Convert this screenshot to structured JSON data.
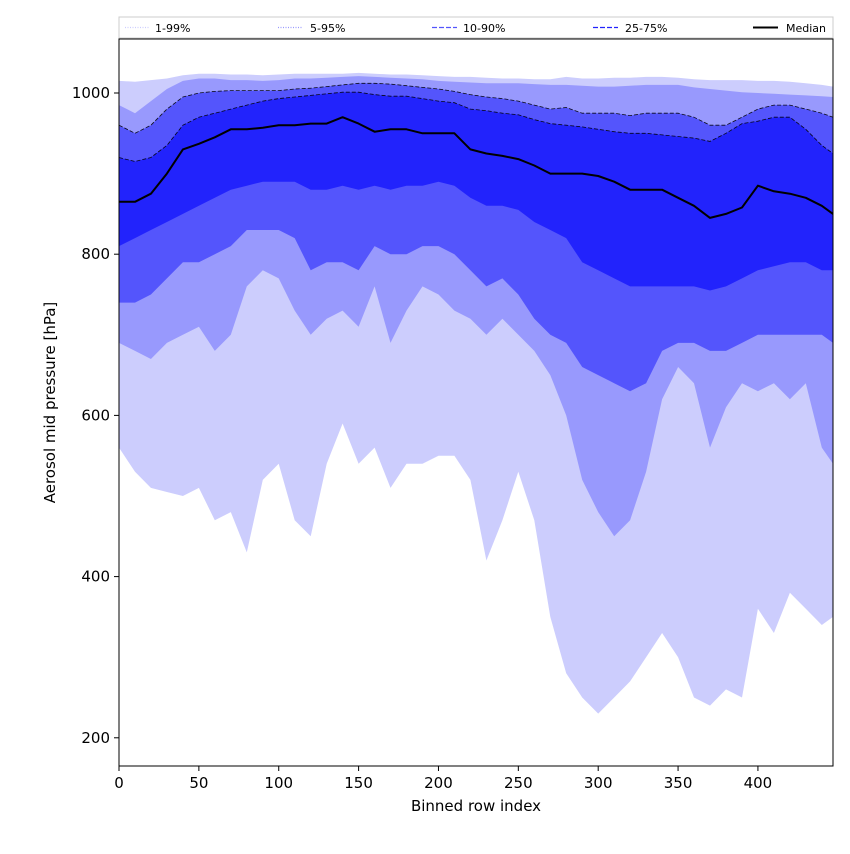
{
  "chart_data": {
    "type": "area",
    "title": "",
    "xlabel": "Binned row index",
    "ylabel": "Aerosol mid pressure [hPa]",
    "xlim": [
      0,
      447
    ],
    "ylim": [
      165,
      1067
    ],
    "xticks": [
      0,
      50,
      100,
      150,
      200,
      250,
      300,
      350,
      400
    ],
    "yticks": [
      200,
      400,
      600,
      800,
      1000
    ],
    "grid": false,
    "legend_position": "top",
    "legend": [
      {
        "label": "1-99%",
        "color": "#cccdfd",
        "style": "dotted"
      },
      {
        "label": "5-95%",
        "color": "#9899fd",
        "style": "dotted"
      },
      {
        "label": "10-90%",
        "color": "#5455fc",
        "style": "dashed"
      },
      {
        "label": "25-75%",
        "color": "#2223fc",
        "style": "dashed"
      },
      {
        "label": "Median",
        "color": "#000000",
        "style": "solid"
      }
    ],
    "x": [
      0,
      10,
      20,
      30,
      40,
      50,
      60,
      70,
      80,
      90,
      100,
      110,
      120,
      130,
      140,
      150,
      160,
      170,
      180,
      190,
      200,
      210,
      220,
      230,
      240,
      250,
      260,
      270,
      280,
      290,
      300,
      310,
      320,
      330,
      340,
      350,
      360,
      370,
      380,
      390,
      400,
      410,
      420,
      430,
      440,
      447
    ],
    "bands": [
      {
        "name": "1-99%",
        "color": "#cccdfd",
        "lower": [
          560,
          530,
          510,
          505,
          500,
          510,
          470,
          480,
          430,
          520,
          540,
          470,
          450,
          540,
          590,
          540,
          560,
          510,
          540,
          540,
          550,
          550,
          520,
          420,
          470,
          530,
          470,
          350,
          280,
          250,
          230,
          250,
          270,
          300,
          330,
          300,
          250,
          240,
          260,
          250,
          360,
          330,
          380,
          360,
          340,
          350
        ],
        "upper": [
          1015,
          1014,
          1016,
          1018,
          1022,
          1024,
          1024,
          1023,
          1023,
          1022,
          1023,
          1024,
          1024,
          1024,
          1024,
          1025,
          1024,
          1023,
          1023,
          1022,
          1021,
          1020,
          1020,
          1019,
          1018,
          1018,
          1017,
          1017,
          1020,
          1018,
          1018,
          1019,
          1019,
          1020,
          1020,
          1019,
          1017,
          1016,
          1016,
          1016,
          1015,
          1015,
          1014,
          1012,
          1010,
          1008
        ]
      },
      {
        "name": "5-95%",
        "color": "#9899fd",
        "lower": [
          690,
          680,
          670,
          690,
          700,
          710,
          680,
          700,
          760,
          780,
          770,
          730,
          700,
          720,
          730,
          710,
          760,
          690,
          730,
          760,
          750,
          730,
          720,
          700,
          720,
          700,
          680,
          650,
          600,
          520,
          480,
          450,
          470,
          530,
          620,
          660,
          640,
          560,
          610,
          640,
          630,
          640,
          620,
          640,
          560,
          540
        ],
        "upper": [
          985,
          975,
          990,
          1005,
          1015,
          1018,
          1018,
          1016,
          1016,
          1015,
          1016,
          1018,
          1018,
          1019,
          1020,
          1021,
          1020,
          1019,
          1018,
          1017,
          1015,
          1014,
          1013,
          1012,
          1012,
          1012,
          1011,
          1010,
          1010,
          1009,
          1008,
          1008,
          1009,
          1010,
          1010,
          1010,
          1007,
          1005,
          1003,
          1001,
          1000,
          999,
          998,
          997,
          996,
          995
        ]
      },
      {
        "name": "10-90%",
        "color": "#5455fc",
        "lower": [
          740,
          740,
          750,
          770,
          790,
          790,
          800,
          810,
          830,
          830,
          830,
          820,
          780,
          790,
          790,
          780,
          810,
          800,
          800,
          810,
          810,
          800,
          780,
          760,
          770,
          750,
          720,
          700,
          690,
          660,
          650,
          640,
          630,
          640,
          680,
          690,
          690,
          680,
          680,
          690,
          700,
          700,
          700,
          700,
          700,
          690
        ],
        "upper": [
          960,
          950,
          960,
          980,
          995,
          1000,
          1002,
          1003,
          1003,
          1003,
          1003,
          1005,
          1006,
          1008,
          1010,
          1012,
          1012,
          1011,
          1009,
          1007,
          1005,
          1002,
          998,
          995,
          993,
          990,
          985,
          980,
          982,
          975,
          975,
          975,
          972,
          975,
          975,
          975,
          970,
          960,
          960,
          970,
          980,
          985,
          985,
          980,
          975,
          970
        ]
      },
      {
        "name": "25-75%",
        "color": "#2223fc",
        "lower": [
          810,
          820,
          830,
          840,
          850,
          860,
          870,
          880,
          885,
          890,
          890,
          890,
          880,
          880,
          885,
          880,
          885,
          880,
          885,
          885,
          890,
          885,
          870,
          860,
          860,
          855,
          840,
          830,
          820,
          790,
          780,
          770,
          760,
          760,
          760,
          760,
          760,
          755,
          760,
          770,
          780,
          785,
          790,
          790,
          780,
          780
        ],
        "upper": [
          920,
          915,
          920,
          935,
          960,
          970,
          975,
          980,
          985,
          990,
          993,
          995,
          997,
          999,
          1001,
          1001,
          998,
          996,
          996,
          993,
          990,
          988,
          980,
          978,
          975,
          973,
          967,
          962,
          960,
          958,
          955,
          952,
          950,
          950,
          948,
          946,
          944,
          940,
          950,
          962,
          965,
          970,
          970,
          955,
          935,
          925
        ]
      }
    ],
    "series": [
      {
        "name": "Median",
        "color": "#000000",
        "values": [
          865,
          865,
          875,
          900,
          930,
          937,
          945,
          955,
          955,
          957,
          960,
          960,
          962,
          962,
          970,
          962,
          952,
          955,
          955,
          950,
          950,
          950,
          930,
          925,
          922,
          918,
          910,
          900,
          900,
          900,
          897,
          890,
          880,
          880,
          880,
          870,
          860,
          845,
          850,
          858,
          885,
          878,
          875,
          870,
          860,
          850
        ]
      }
    ]
  }
}
